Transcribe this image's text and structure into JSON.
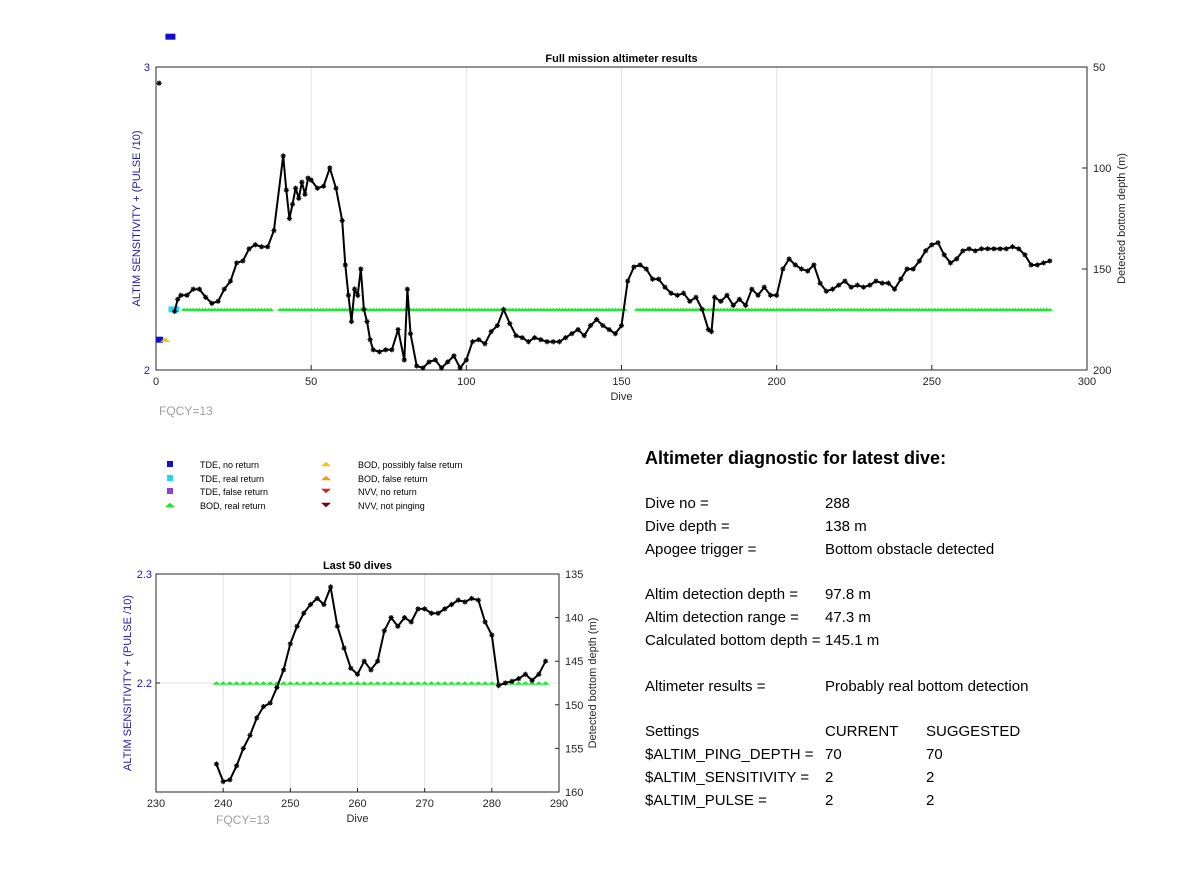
{
  "chart_data": [
    {
      "type": "line",
      "title": "Full mission altimeter results",
      "xlabel": "Dive",
      "ylabel_left": "ALTIM SENSITIVITY + (PULSE /10)",
      "ylabel_right": "Detected bottom depth (m)",
      "xlim": [
        0,
        300
      ],
      "ylim_left": [
        2,
        3
      ],
      "ylim_right": [
        200,
        50
      ],
      "right_axis_reversed": true,
      "xticks": [
        "0",
        "50",
        "100",
        "150",
        "200",
        "250",
        "300"
      ],
      "yticks_left": [
        "2",
        "3"
      ],
      "yticks_right": [
        "50",
        "100",
        "150",
        "200"
      ],
      "grid": true,
      "annotation": "FQCY=13",
      "bottom_depth_series": {
        "name": "Detected bottom depth",
        "x": [
          1,
          3,
          4,
          5,
          6,
          7,
          8,
          9,
          10,
          12,
          14,
          16,
          18,
          20,
          22,
          24,
          26,
          28,
          30,
          32,
          34,
          36,
          38,
          40,
          41,
          42,
          43,
          44,
          45,
          46,
          47,
          48,
          49,
          50,
          52,
          54,
          56,
          58,
          60,
          61,
          62,
          63,
          64,
          65,
          66,
          68,
          70,
          72,
          74,
          76,
          78,
          80,
          81,
          82,
          84,
          86,
          88,
          90,
          92,
          94,
          96,
          98,
          100,
          102,
          104,
          106,
          108,
          110,
          112,
          114,
          116,
          118,
          120,
          122,
          124,
          126,
          128,
          130,
          132,
          134,
          136,
          138,
          140,
          142,
          144,
          146,
          148,
          150,
          152,
          154,
          156,
          158,
          160,
          162,
          164,
          166,
          168,
          170,
          172,
          174,
          176,
          178,
          179,
          180,
          182,
          184,
          186,
          188,
          190,
          192,
          194,
          196,
          198,
          200,
          202,
          204,
          206,
          208,
          210,
          212,
          214,
          216,
          218,
          220,
          222,
          224,
          226,
          228,
          230,
          232,
          234,
          236,
          238,
          240,
          242,
          244,
          246,
          248,
          250,
          252,
          254,
          256,
          258,
          260,
          262,
          264,
          266,
          268,
          270,
          272,
          274,
          276,
          278,
          280,
          282,
          284,
          286,
          288
        ],
        "y": [
          58,
          null,
          null,
          null,
          null,
          null,
          null,
          null,
          null,
          null,
          null,
          null,
          null,
          null,
          null,
          null,
          null,
          null,
          null,
          null,
          null,
          null,
          null,
          null,
          null,
          null,
          null,
          null,
          null,
          null,
          null,
          null,
          null,
          null,
          null,
          null,
          null,
          null,
          null,
          null,
          null,
          null,
          null,
          null,
          null,
          null,
          null,
          null,
          null,
          null,
          null,
          null,
          null,
          null,
          null,
          null,
          null,
          null,
          null,
          null,
          null,
          null,
          null,
          null,
          null,
          null,
          null,
          null,
          null,
          null,
          null,
          null,
          null,
          null,
          null,
          null,
          null,
          null,
          null,
          null,
          null,
          null,
          null,
          null,
          null,
          null,
          null,
          null,
          null,
          null,
          null,
          null,
          null,
          null,
          null,
          null,
          null,
          null,
          null,
          null,
          null,
          null,
          null,
          null,
          null,
          null,
          null,
          null,
          null,
          null,
          null,
          null,
          null,
          null,
          null,
          null,
          null,
          null,
          null,
          null,
          null,
          null,
          null,
          null,
          null,
          null,
          null,
          null,
          null,
          null,
          null,
          null,
          null,
          null,
          null,
          null,
          null,
          null,
          null,
          null,
          null,
          null,
          null,
          null,
          null,
          null,
          null,
          null,
          null,
          null,
          null,
          null,
          null,
          null,
          null,
          null,
          null,
          null
        ],
        "xs": [
          6,
          7,
          8,
          10,
          12,
          14,
          16,
          18,
          20,
          22,
          24,
          26,
          28,
          30,
          32,
          34,
          36,
          38,
          41,
          42,
          43,
          44,
          45,
          46,
          47,
          48,
          49,
          50,
          52,
          54,
          56,
          58,
          60,
          61,
          62,
          63,
          64,
          65,
          66,
          67,
          68,
          69,
          70,
          72,
          74,
          76,
          78,
          80,
          81,
          82,
          84,
          86,
          88,
          90,
          92,
          94,
          96,
          98,
          100,
          102,
          104,
          106,
          108,
          110,
          112,
          114,
          116,
          118,
          120,
          122,
          124,
          126,
          128,
          130,
          132,
          134,
          136,
          138,
          140,
          142,
          144,
          146,
          148,
          150,
          152,
          154,
          156,
          158,
          160,
          162,
          164,
          166,
          168,
          170,
          172,
          174,
          176,
          178,
          179,
          180,
          182,
          184,
          186,
          188,
          190,
          192,
          194,
          196,
          198,
          200,
          202,
          204,
          206,
          208,
          210,
          212,
          214,
          216,
          218,
          220,
          222,
          224,
          226,
          228,
          230,
          232,
          234,
          236,
          238,
          240,
          242,
          244,
          246,
          248,
          250,
          252,
          254,
          256,
          258,
          260,
          262,
          264,
          266,
          268,
          270,
          272,
          274,
          276,
          278,
          280,
          282,
          284,
          286,
          288
        ],
        "ys": [
          171,
          165,
          163,
          163,
          160,
          160,
          164,
          167,
          166,
          160,
          156,
          147,
          146,
          140,
          138,
          139,
          139,
          131,
          94,
          111,
          125,
          118,
          110,
          115,
          107,
          113,
          105,
          106,
          110,
          109,
          100,
          110,
          126,
          148,
          163,
          176,
          160,
          163,
          150,
          170,
          176,
          185,
          190,
          191,
          190,
          190,
          180,
          195,
          160,
          182,
          198,
          199,
          196,
          195,
          199,
          196,
          193,
          199,
          195,
          186,
          185,
          187,
          181,
          178,
          170,
          177,
          183,
          184,
          186,
          184,
          185,
          186,
          186,
          186,
          184,
          182,
          180,
          183,
          178,
          175,
          178,
          180,
          182,
          178,
          156,
          149,
          148,
          150,
          155,
          155,
          159,
          162,
          163,
          162,
          166,
          164,
          170,
          180,
          181,
          164,
          166,
          163,
          168,
          165,
          168,
          160,
          163,
          159,
          163,
          163,
          150,
          145,
          148,
          150,
          151,
          148,
          157,
          161,
          160,
          158,
          156,
          159,
          158,
          159,
          158,
          156,
          157,
          157,
          160,
          155,
          150,
          150,
          146,
          141,
          138,
          137,
          143,
          147,
          145,
          141,
          140,
          141,
          140,
          140,
          140,
          140,
          140,
          139,
          140,
          143,
          148,
          148,
          147,
          146
        ]
      },
      "legend": [
        {
          "label": "TDE, no return",
          "color": "#1010cc",
          "marker": "square"
        },
        {
          "label": "TDE, real return",
          "color": "#22d8f0",
          "marker": "square"
        },
        {
          "label": "TDE, false return",
          "color": "#8a3fd8",
          "marker": "square"
        },
        {
          "label": "BOD, real return",
          "color": "#11ee22",
          "marker": "triangle-up"
        },
        {
          "label": "BOD, possibly false return",
          "color": "#f7c21a",
          "marker": "triangle-up"
        },
        {
          "label": "BOD, false return",
          "color": "#f39a16",
          "marker": "triangle-up"
        },
        {
          "label": "NVV, no return",
          "color": "#e02020",
          "marker": "triangle-down"
        },
        {
          "label": "NVV, not pinging",
          "color": "#7a0000",
          "marker": "triangle-down"
        }
      ]
    },
    {
      "type": "line",
      "title": "Last 50 dives",
      "xlabel": "Dive",
      "ylabel_left": "ALTIM SENSITIVITY + (PULSE /10)",
      "ylabel_right": "Detected bottom depth (m)",
      "xlim": [
        230,
        290
      ],
      "ylim_left": [
        2.1,
        2.3
      ],
      "ylim_right": [
        160,
        135
      ],
      "right_axis_reversed": true,
      "xticks": [
        "230",
        "240",
        "250",
        "260",
        "270",
        "280",
        "290"
      ],
      "yticks_left": [
        "2.2",
        "2.3"
      ],
      "yticks_right": [
        "135",
        "140",
        "145",
        "150",
        "155",
        "160"
      ],
      "grid": true,
      "annotation": "FQCY=13",
      "bod_real_return": {
        "x_start": 239,
        "x_end": 288,
        "value": 2.2
      },
      "bottom_depth_series": {
        "name": "Detected bottom depth",
        "x": [
          239,
          240,
          241,
          242,
          243,
          244,
          245,
          246,
          247,
          248,
          249,
          250,
          251,
          252,
          253,
          254,
          255,
          256,
          257,
          258,
          259,
          260,
          261,
          262,
          263,
          264,
          265,
          266,
          267,
          268,
          269,
          270,
          271,
          272,
          273,
          274,
          275,
          276,
          277,
          278,
          279,
          280,
          281,
          282,
          283,
          284,
          285,
          286,
          287,
          288
        ],
        "y": [
          156.8,
          158.8,
          158.6,
          157,
          155,
          153.5,
          151.5,
          150.2,
          149.8,
          148,
          146,
          143,
          141,
          139.5,
          138.5,
          137.8,
          138.5,
          136.5,
          141,
          143.5,
          145.8,
          146.5,
          145,
          146,
          145,
          141.5,
          140,
          141,
          140,
          140.5,
          139,
          139,
          139.5,
          139.5,
          139,
          138.5,
          138,
          138.2,
          137.8,
          138,
          140.5,
          142,
          147.8,
          147.5,
          147.3,
          147,
          146.5,
          147.2,
          146.5,
          145
        ]
      }
    }
  ],
  "diagnostic": {
    "title": "Altimeter diagnostic for latest dive:",
    "rows": [
      {
        "key": "Dive no =",
        "value": "288"
      },
      {
        "key": "Dive depth =",
        "value": "138 m"
      },
      {
        "key": "Apogee trigger =",
        "value": "Bottom obstacle detected"
      },
      {
        "key": "Altim detection depth =",
        "value": "97.8 m"
      },
      {
        "key": "Altim detection range =",
        "value": "47.3 m"
      },
      {
        "key": "Calculated bottom depth =",
        "value": "145.1 m"
      },
      {
        "key": "Altimeter results =",
        "value": "Probably real bottom detection"
      }
    ],
    "settings": {
      "header": {
        "key": "Settings",
        "current": "CURRENT",
        "suggested": "SUGGESTED"
      },
      "rows": [
        {
          "key": "$ALTIM_PING_DEPTH =",
          "current": "70",
          "suggested": "70"
        },
        {
          "key": "$ALTIM_SENSITIVITY =",
          "current": "2",
          "suggested": "2"
        },
        {
          "key": "$ALTIM_PULSE =",
          "current": "2",
          "suggested": "2"
        }
      ]
    }
  }
}
